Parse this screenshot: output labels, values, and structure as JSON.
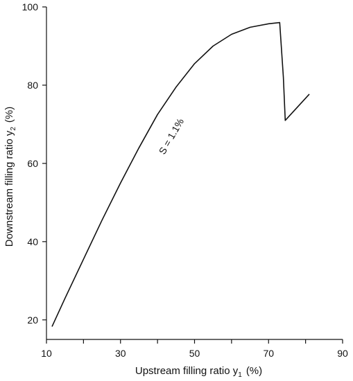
{
  "chart_data": {
    "type": "line",
    "title": "",
    "xlabel": "Upstream filling ratio y",
    "xlabel_sub": "1",
    "xlabel_unit": "(%)",
    "ylabel": "Downstream filling ratio y",
    "ylabel_sub": "2",
    "ylabel_unit": "(%)",
    "xlim": [
      10,
      90
    ],
    "ylim": [
      15,
      100
    ],
    "x_tick_labels": [
      10,
      30,
      50,
      70,
      90
    ],
    "x_minor_ticks": [
      20,
      40,
      60,
      80
    ],
    "y_tick_labels": [
      20,
      40,
      60,
      80,
      100
    ],
    "grid": false,
    "series": [
      {
        "x": [
          11.5,
          15,
          20,
          25,
          30,
          35,
          40,
          45,
          50,
          55,
          60,
          65,
          70,
          73,
          74,
          74.5,
          81
        ],
        "y": [
          18.3,
          25.5,
          35.5,
          45.5,
          55,
          64,
          72.5,
          79.5,
          85.5,
          90,
          93,
          94.8,
          95.7,
          96,
          82,
          71,
          77.7
        ]
      }
    ],
    "annotations": [
      {
        "text": "S = 1.1%",
        "x": 44.5,
        "y": 66.5
      }
    ]
  }
}
